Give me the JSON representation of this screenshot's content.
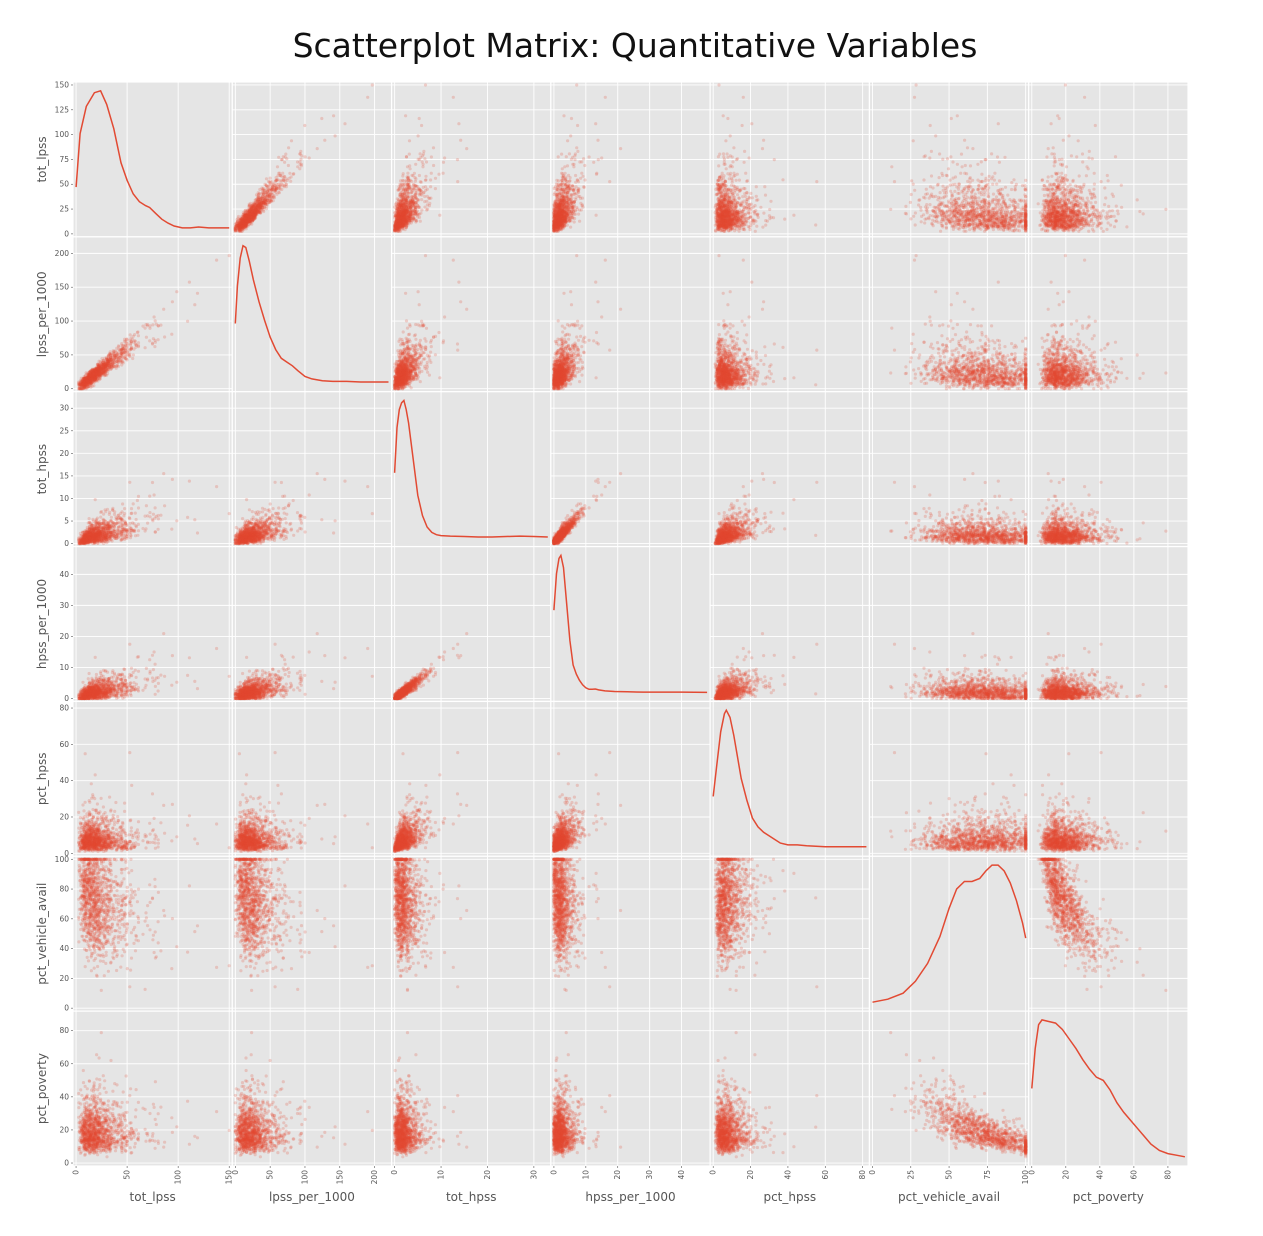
{
  "title": "Scatterplot Matrix: Quantitative Variables",
  "chart_data": {
    "type": "scatter",
    "title": "Scatterplot Matrix: Quantitative Variables",
    "kind": "scatter-matrix",
    "diagonal": "kde",
    "grid": true,
    "colors": {
      "marker": "#E24A33",
      "panel": "#E5E5E5",
      "grid": "#FFFFFF",
      "text": "#555555"
    },
    "variables": [
      {
        "name": "tot_lpss",
        "range": [
          0,
          150
        ],
        "ticks": [
          0,
          25,
          50,
          75,
          100,
          125,
          150
        ],
        "xticks": [
          0,
          50,
          100,
          150
        ],
        "kde": [
          [
            0,
            45
          ],
          [
            4,
            100
          ],
          [
            10,
            128
          ],
          [
            18,
            142
          ],
          [
            24,
            144
          ],
          [
            30,
            130
          ],
          [
            37,
            105
          ],
          [
            44,
            70
          ],
          [
            50,
            52
          ],
          [
            56,
            38
          ],
          [
            62,
            30
          ],
          [
            68,
            26
          ],
          [
            72,
            24
          ],
          [
            78,
            18
          ],
          [
            84,
            12
          ],
          [
            90,
            8
          ],
          [
            96,
            5
          ],
          [
            104,
            3
          ],
          [
            112,
            3
          ],
          [
            120,
            4
          ],
          [
            130,
            3
          ],
          [
            140,
            3
          ],
          [
            150,
            3
          ]
        ]
      },
      {
        "name": "lpss_per_1000",
        "range": [
          0,
          220
        ],
        "ticks": [
          0,
          50,
          100,
          150,
          200
        ],
        "xticks": [
          0,
          50,
          100,
          150,
          200
        ],
        "kde": [
          [
            0,
            100
          ],
          [
            3,
            160
          ],
          [
            7,
            205
          ],
          [
            11,
            225
          ],
          [
            15,
            222
          ],
          [
            20,
            200
          ],
          [
            26,
            170
          ],
          [
            34,
            135
          ],
          [
            42,
            105
          ],
          [
            50,
            78
          ],
          [
            58,
            58
          ],
          [
            66,
            44
          ],
          [
            74,
            38
          ],
          [
            82,
            32
          ],
          [
            90,
            24
          ],
          [
            100,
            15
          ],
          [
            110,
            11
          ],
          [
            125,
            8
          ],
          [
            140,
            7
          ],
          [
            160,
            7
          ],
          [
            180,
            6
          ],
          [
            200,
            6
          ],
          [
            220,
            6
          ]
        ]
      },
      {
        "name": "tot_hpss",
        "range": [
          0,
          33
        ],
        "ticks": [
          0,
          5,
          10,
          15,
          20,
          25,
          30
        ],
        "xticks": [
          0,
          10,
          20,
          30
        ],
        "kde": [
          [
            0,
            15
          ],
          [
            0.5,
            25
          ],
          [
            1,
            29
          ],
          [
            1.5,
            30.5
          ],
          [
            2,
            31
          ],
          [
            2.5,
            29
          ],
          [
            3,
            26
          ],
          [
            4,
            18
          ],
          [
            5,
            10
          ],
          [
            6,
            5.5
          ],
          [
            7,
            3
          ],
          [
            8,
            1.8
          ],
          [
            9,
            1.3
          ],
          [
            10,
            1.1
          ],
          [
            12,
            1.0
          ],
          [
            15,
            0.9
          ],
          [
            18,
            0.8
          ],
          [
            21,
            0.8
          ],
          [
            24,
            0.9
          ],
          [
            27,
            1.0
          ],
          [
            30,
            0.9
          ],
          [
            33,
            0.8
          ]
        ]
      },
      {
        "name": "hpss_per_1000",
        "range": [
          0,
          48
        ],
        "ticks": [
          0,
          10,
          20,
          30,
          40
        ],
        "xticks": [
          0,
          10,
          20,
          30,
          40
        ],
        "kde": [
          [
            0,
            28
          ],
          [
            0.8,
            40
          ],
          [
            1.6,
            45
          ],
          [
            2.2,
            46
          ],
          [
            3,
            42
          ],
          [
            4,
            30
          ],
          [
            5,
            18
          ],
          [
            6,
            10
          ],
          [
            7,
            7
          ],
          [
            8,
            5
          ],
          [
            9,
            3.5
          ],
          [
            10,
            2.5
          ],
          [
            11,
            2
          ],
          [
            12,
            2
          ],
          [
            13,
            2.1
          ],
          [
            14,
            1.8
          ],
          [
            16,
            1.5
          ],
          [
            19,
            1.3
          ],
          [
            23,
            1.2
          ],
          [
            28,
            1.1
          ],
          [
            34,
            1.1
          ],
          [
            40,
            1.1
          ],
          [
            48,
            1.0
          ]
        ]
      },
      {
        "name": "pct_hpss",
        "range": [
          0,
          82
        ],
        "ticks": [
          0,
          20,
          40,
          60,
          80
        ],
        "xticks": [
          0,
          20,
          40,
          60,
          80
        ],
        "kde": [
          [
            0,
            30
          ],
          [
            2,
            48
          ],
          [
            4,
            66
          ],
          [
            6,
            76
          ],
          [
            7,
            78
          ],
          [
            9,
            74
          ],
          [
            11,
            64
          ],
          [
            13,
            52
          ],
          [
            15,
            40
          ],
          [
            18,
            28
          ],
          [
            21,
            18
          ],
          [
            24,
            13
          ],
          [
            27,
            10
          ],
          [
            30,
            8
          ],
          [
            33,
            6
          ],
          [
            36,
            4
          ],
          [
            40,
            3
          ],
          [
            45,
            3
          ],
          [
            50,
            2.5
          ],
          [
            60,
            2
          ],
          [
            70,
            2
          ],
          [
            82,
            2
          ]
        ]
      },
      {
        "name": "pct_vehicle_avail",
        "range": [
          0,
          100
        ],
        "ticks": [
          0,
          20,
          40,
          60,
          80,
          100
        ],
        "xticks": [
          0,
          25,
          50,
          75,
          100
        ],
        "kde": [
          [
            0,
            2
          ],
          [
            10,
            4
          ],
          [
            20,
            8
          ],
          [
            28,
            16
          ],
          [
            36,
            28
          ],
          [
            44,
            46
          ],
          [
            50,
            65
          ],
          [
            55,
            78
          ],
          [
            60,
            83
          ],
          [
            65,
            83
          ],
          [
            70,
            85
          ],
          [
            74,
            90
          ],
          [
            78,
            94
          ],
          [
            82,
            94
          ],
          [
            86,
            90
          ],
          [
            90,
            82
          ],
          [
            94,
            70
          ],
          [
            98,
            55
          ],
          [
            100,
            45
          ]
        ]
      },
      {
        "name": "pct_poverty",
        "range": [
          0,
          90
        ],
        "ticks": [
          0,
          20,
          40,
          60,
          80
        ],
        "xticks": [
          0,
          20,
          40,
          60,
          80
        ],
        "kde": [
          [
            0,
            45
          ],
          [
            2,
            70
          ],
          [
            4,
            85
          ],
          [
            6,
            88
          ],
          [
            10,
            87
          ],
          [
            14,
            86
          ],
          [
            18,
            82
          ],
          [
            22,
            76
          ],
          [
            26,
            70
          ],
          [
            30,
            63
          ],
          [
            34,
            57
          ],
          [
            38,
            52
          ],
          [
            42,
            50
          ],
          [
            46,
            44
          ],
          [
            50,
            36
          ],
          [
            54,
            30
          ],
          [
            58,
            25
          ],
          [
            62,
            20
          ],
          [
            66,
            15
          ],
          [
            70,
            10
          ],
          [
            75,
            6
          ],
          [
            80,
            4
          ],
          [
            85,
            3
          ],
          [
            90,
            2
          ]
        ]
      }
    ]
  }
}
